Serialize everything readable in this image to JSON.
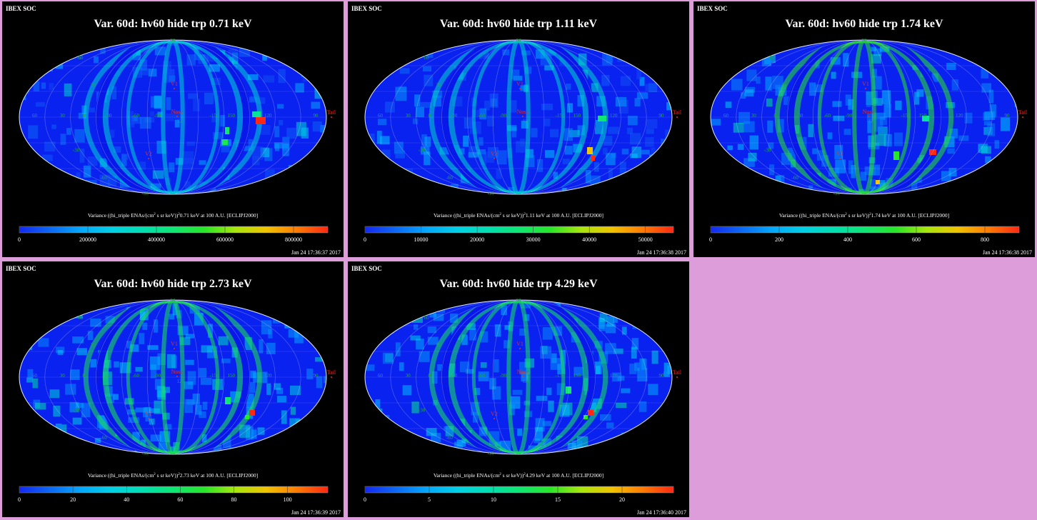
{
  "colors": {
    "background": "#dd9ddb",
    "panel_bg": "#000000",
    "map_blue": "#0a22f0",
    "label_green": "#1fae3a",
    "label_red": "#e0302a",
    "bar_red": "#ff2a10"
  },
  "common": {
    "org_label": "IBEX SOC",
    "lat_labels": [
      "90",
      "60",
      "30",
      "-30",
      "-60",
      "-90"
    ],
    "lon_labels": [
      "60",
      "30",
      "0",
      "-30",
      "-60",
      "-90",
      "120",
      "-150",
      "150",
      "120",
      "90"
    ],
    "markers": {
      "v1": "V1",
      "v2": "V2",
      "nose": "Nose",
      "tail": "Tail"
    },
    "colorbar_caption_prefix": "Variance ((hi_triple ENAs/(cm",
    "colorbar_caption_mid": " s sr keV))",
    "colorbar_caption_exp_a": "2",
    "colorbar_caption_exp_b": "2",
    "colorbar_caption_suffix": " keV at 100 A.U. [ECLIPJ2000]"
  },
  "chart_data": [
    {
      "type": "heatmap",
      "projection": "Mollweide",
      "title": "Var. 60d: hv60 hide trp 0.71 keV",
      "energy": "0.71",
      "colorbar_ticks": [
        "0",
        "200000",
        "400000",
        "600000",
        "800000"
      ],
      "colorbar_range": [
        0,
        900000
      ],
      "timestamp": "Jan 24 17:36:37 2017"
    },
    {
      "type": "heatmap",
      "projection": "Mollweide",
      "title": "Var. 60d: hv60 hide trp 1.11 keV",
      "energy": "1.11",
      "colorbar_ticks": [
        "0",
        "10000",
        "20000",
        "30000",
        "40000",
        "50000"
      ],
      "colorbar_range": [
        0,
        55000
      ],
      "timestamp": "Jan 24 17:36:38 2017"
    },
    {
      "type": "heatmap",
      "projection": "Mollweide",
      "title": "Var. 60d: hv60 hide trp 1.74 keV",
      "energy": "1.74",
      "colorbar_ticks": [
        "0",
        "200",
        "400",
        "600",
        "800"
      ],
      "colorbar_range": [
        0,
        900
      ],
      "timestamp": "Jan 24 17:36:38 2017"
    },
    {
      "type": "heatmap",
      "projection": "Mollweide",
      "title": "Var. 60d: hv60 hide trp 2.73 keV",
      "energy": "2.73",
      "colorbar_ticks": [
        "0",
        "20",
        "40",
        "60",
        "80",
        "100"
      ],
      "colorbar_range": [
        0,
        115
      ],
      "timestamp": "Jan 24 17:36:39 2017"
    },
    {
      "type": "heatmap",
      "projection": "Mollweide",
      "title": "Var. 60d: hv60 hide trp 4.29 keV",
      "energy": "4.29",
      "colorbar_ticks": [
        "0",
        "5",
        "10",
        "15",
        "20"
      ],
      "colorbar_range": [
        0,
        24
      ],
      "timestamp": "Jan 24 17:36:40 2017"
    }
  ]
}
